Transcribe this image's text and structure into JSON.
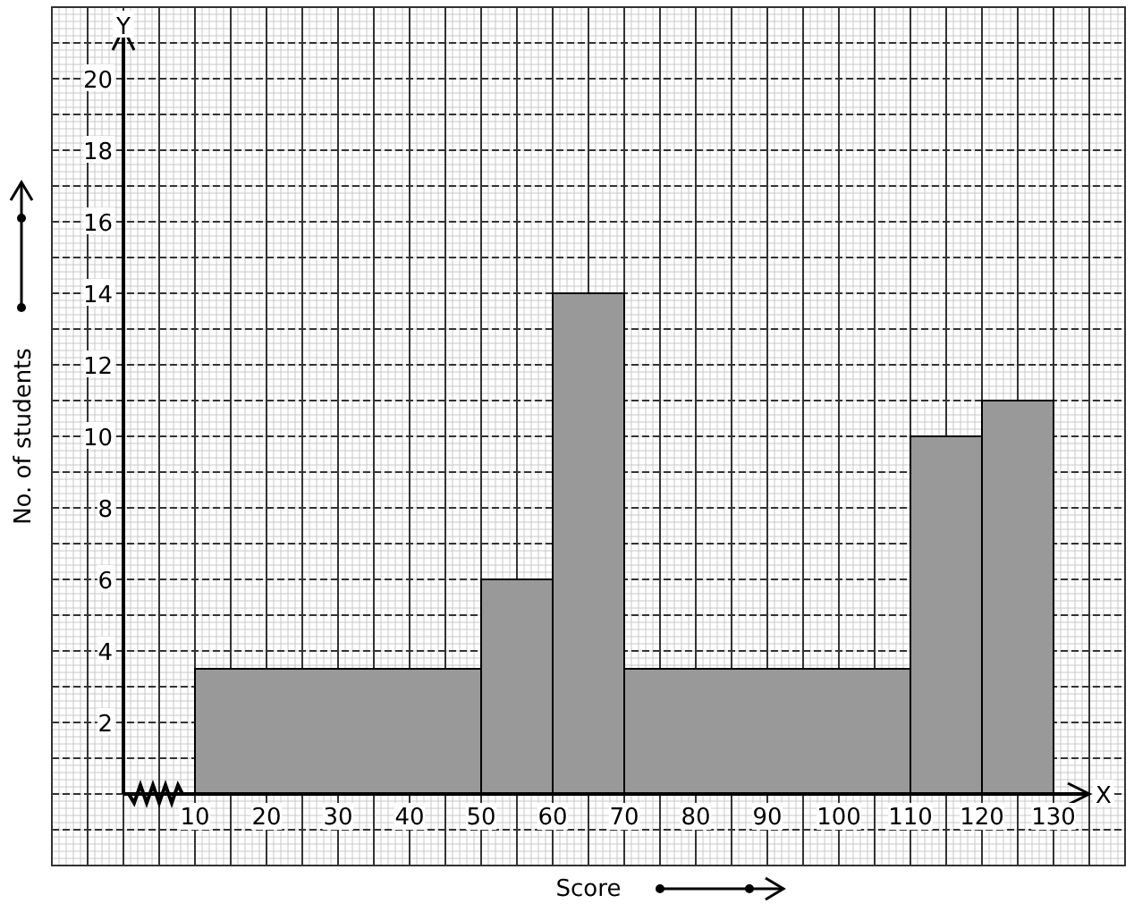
{
  "chart_data": {
    "type": "histogram",
    "xlabel": "Score",
    "ylabel": "No. of students",
    "bins": [
      10,
      50,
      60,
      70,
      110,
      120,
      130
    ],
    "values": [
      3.5,
      6,
      14,
      3.5,
      10,
      11
    ],
    "color": "#999999",
    "xlim": [
      -10,
      140
    ],
    "ylim": [
      -2,
      22
    ],
    "xticks": [
      10,
      20,
      30,
      40,
      50,
      60,
      70,
      80,
      90,
      100,
      110,
      120,
      130
    ],
    "yticks": [
      2,
      4,
      6,
      8,
      10,
      12,
      14,
      16,
      18,
      20
    ],
    "annotations": [
      {
        "text": "X",
        "x": 137,
        "y": 0
      },
      {
        "text": "Y",
        "x": 0,
        "y": 21.5
      }
    ],
    "grid": true
  }
}
